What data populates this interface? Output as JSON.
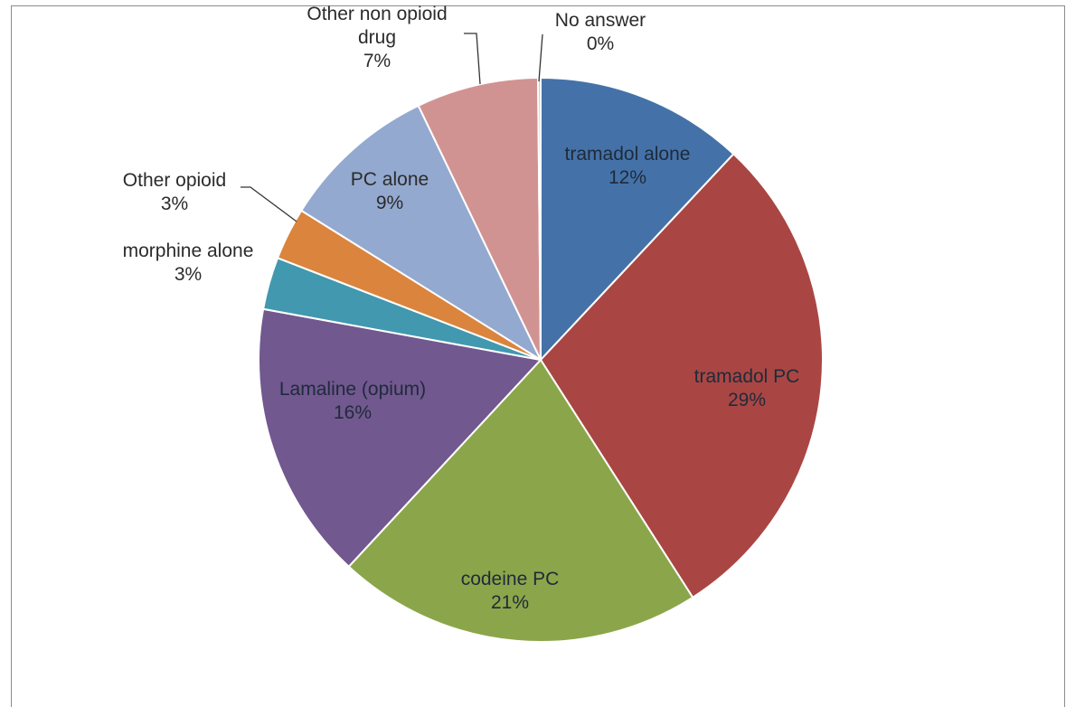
{
  "chart_data": {
    "type": "pie",
    "title": "",
    "slices": [
      {
        "name": "tramadol alone",
        "value": 12,
        "label": "12%",
        "color": "#4472a8"
      },
      {
        "name": "tramadol PC",
        "value": 29,
        "label": "29%",
        "color": "#a94643"
      },
      {
        "name": "codeine PC",
        "value": 21,
        "label": "21%",
        "color": "#8ba64a"
      },
      {
        "name": "Lamaline (opium)",
        "value": 16,
        "label": "16%",
        "color": "#71588f"
      },
      {
        "name": "morphine alone",
        "value": 3,
        "label": "3%",
        "color": "#4198af"
      },
      {
        "name": "Other opioid",
        "value": 3,
        "label": "3%",
        "color": "#db843d"
      },
      {
        "name": "PC alone",
        "value": 9,
        "label": "9%",
        "color": "#93a9cf"
      },
      {
        "name": "Other non opioid drug",
        "value": 7,
        "label": "7%",
        "color": "#d19392"
      },
      {
        "name": "No answer",
        "value": 0.15,
        "label": "0%",
        "color": "#b9cd96"
      }
    ],
    "start_angle": "12 o'clock",
    "direction": "clockwise",
    "legend": "none (data labels on or beside slices)"
  }
}
